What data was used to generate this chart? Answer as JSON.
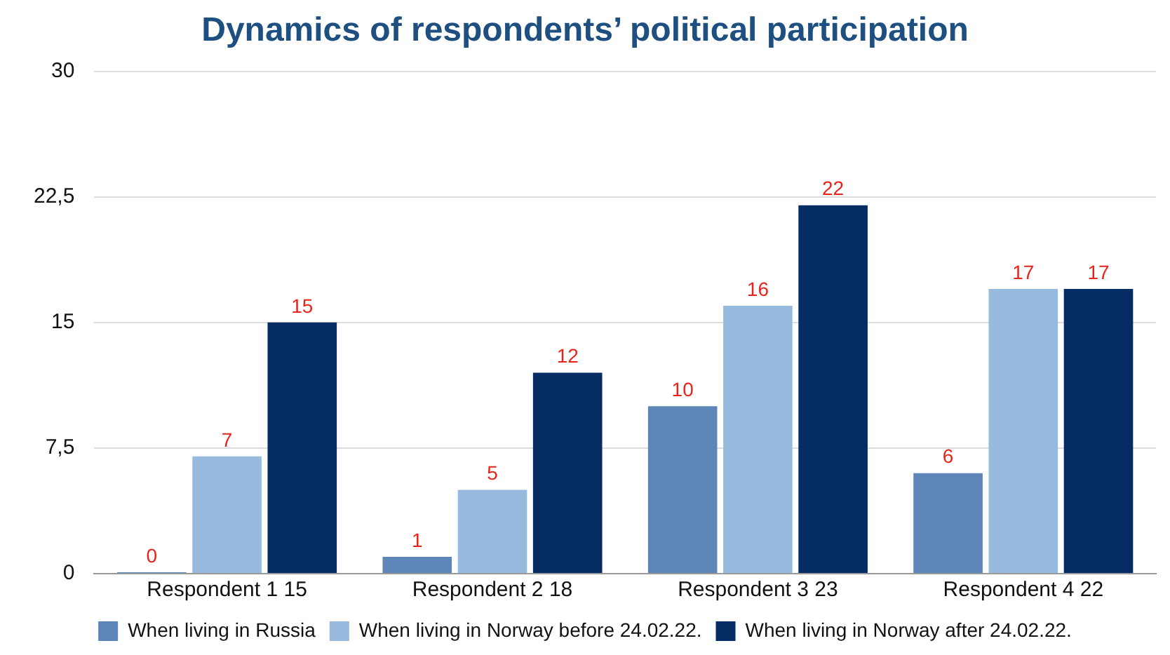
{
  "chart_data": {
    "type": "bar",
    "title": "Dynamics of respondents’ political participation",
    "categories": [
      "Respondent 1 15",
      "Respondent 2 18",
      "Respondent 3 23",
      "Respondent 4 22"
    ],
    "series": [
      {
        "name": "When living in Russia",
        "color": "#5f86b8",
        "values": [
          0,
          1,
          10,
          6
        ]
      },
      {
        "name": "When living in Norway before 24.02.22.",
        "color": "#97bade",
        "values": [
          7,
          5,
          16,
          17
        ]
      },
      {
        "name": "When living in Norway after 24.02.22.",
        "color": "#052c63",
        "values": [
          15,
          12,
          22,
          17
        ]
      }
    ],
    "ylim": [
      0,
      30
    ],
    "yticks": [
      0,
      {
        "value": 7.5,
        "label": "7,5"
      },
      15,
      {
        "value": 22.5,
        "label": "22,5"
      },
      30
    ],
    "grid": "y",
    "legend": "bottom",
    "data_labels": true
  }
}
